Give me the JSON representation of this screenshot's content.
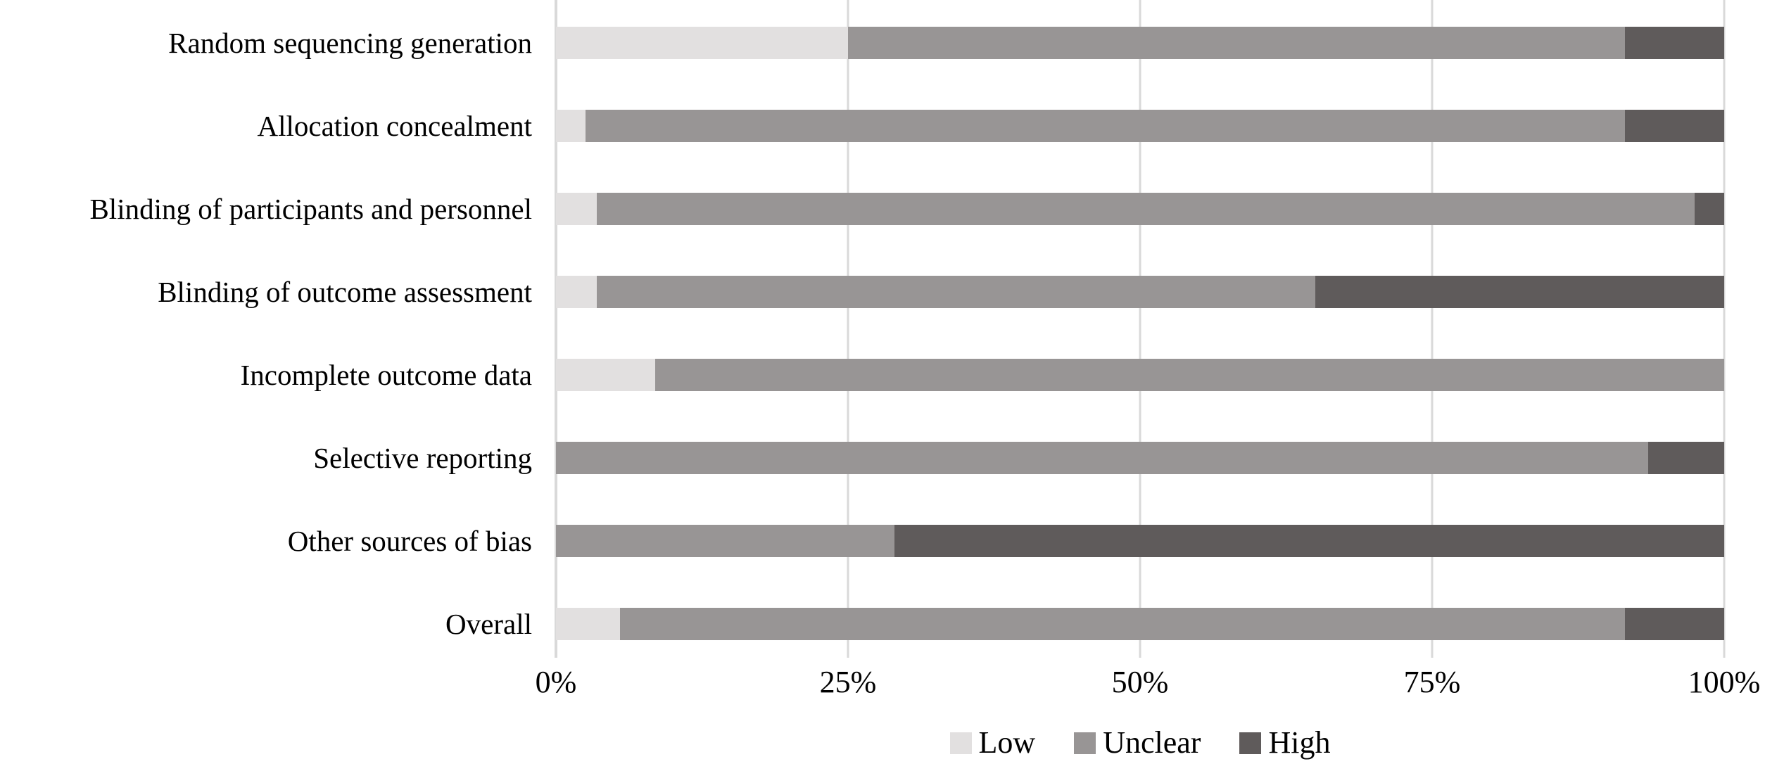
{
  "chart_data": {
    "type": "bar",
    "orientation": "horizontal_stacked",
    "title": "",
    "xlabel": "",
    "ylabel": "",
    "xlim": [
      0,
      100
    ],
    "grid": "vertical",
    "legend_position": "bottom-center",
    "categories": [
      "Random sequencing generation",
      "Allocation concealment",
      "Blinding of participants and personnel",
      "Blinding of outcome assessment",
      "Incomplete outcome data",
      "Selective reporting",
      "Other sources of bias",
      "Overall"
    ],
    "series": [
      {
        "name": "Low",
        "color": "#e2e0e0",
        "values": [
          25,
          2.5,
          3.5,
          3.5,
          8.5,
          0,
          0,
          5.5
        ]
      },
      {
        "name": "Unclear",
        "color": "#989595",
        "values": [
          66.5,
          89,
          94,
          61.5,
          91.5,
          93.5,
          29,
          86
        ]
      },
      {
        "name": "High",
        "color": "#5f5b5b",
        "values": [
          8.5,
          8.5,
          2.5,
          35,
          0,
          6.5,
          71,
          8.5
        ]
      }
    ],
    "x_ticks": [
      {
        "label": "0%",
        "value": 0
      },
      {
        "label": "25%",
        "value": 25
      },
      {
        "label": "50%",
        "value": 50
      },
      {
        "label": "75%",
        "value": 75
      },
      {
        "label": "100%",
        "value": 100
      }
    ]
  },
  "colors": {
    "background": "#ffffff",
    "gridline": "#d9d9d9",
    "text": "#000000",
    "low": "#e2e0e0",
    "unclear": "#989595",
    "high": "#5f5b5b"
  },
  "legend": {
    "items": [
      {
        "label": "Low",
        "color": "#e2e0e0"
      },
      {
        "label": "Unclear",
        "color": "#989595"
      },
      {
        "label": "High",
        "color": "#5f5b5b"
      }
    ]
  }
}
